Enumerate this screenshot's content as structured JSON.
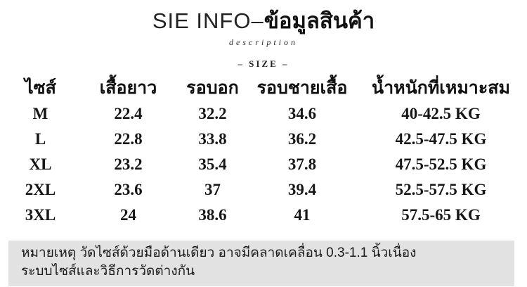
{
  "header": {
    "title_en": "SIE INFO–",
    "title_th": "ข้อมูลสินค้า",
    "subtitle": "description",
    "size_label": "– SIZE –"
  },
  "chart_data": {
    "type": "table",
    "title": "SIE INFO–ข้อมูลสินค้า",
    "columns": [
      "ไซส์",
      "เสื้อยาว",
      "รอบอก",
      "รอบชายเสื้อ",
      "น้ำหนักที่เหมาะสม"
    ],
    "rows": [
      [
        "M",
        "22.4",
        "32.2",
        "34.6",
        "40-42.5 KG"
      ],
      [
        "L",
        "22.8",
        "33.8",
        "36.2",
        "42.5-47.5 KG"
      ],
      [
        "XL",
        "23.2",
        "35.4",
        "37.8",
        "47.5-52.5 KG"
      ],
      [
        "2XL",
        "23.6",
        "37",
        "39.4",
        "52.5-57.5 KG"
      ],
      [
        "3XL",
        "24",
        "38.6",
        "41",
        "57.5-65 KG"
      ]
    ]
  },
  "note": {
    "line1": "หมายเหตุ วัดไซส์ด้วยมือด้านเดียว อาจมีคลาดเคลื่อน 0.3-1.1 นิ้วเนื่อง",
    "line2": "ระบบไซส์และวิธีการวัดต่างกัน"
  },
  "colors": {
    "text": "#1c1c1c",
    "note_background": "#e2e2e2",
    "page_background": "#ffffff"
  }
}
